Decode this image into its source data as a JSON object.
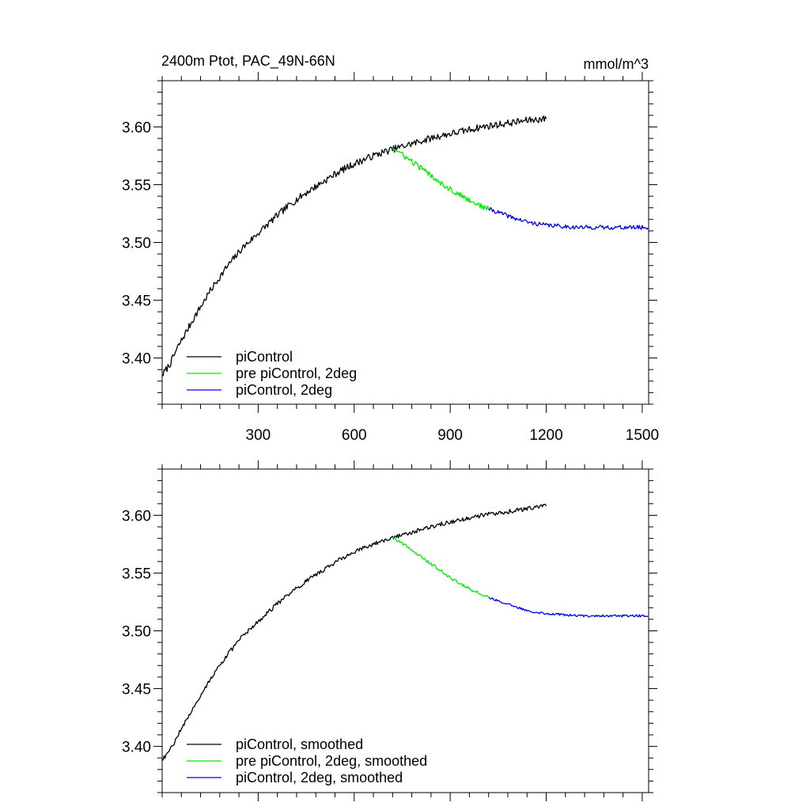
{
  "chart_data": [
    {
      "type": "line",
      "title": "2400m Ptot, PAC_49N-66N",
      "units": "mmol/m^3",
      "xlim": [
        0,
        1520
      ],
      "ylim": [
        3.36,
        3.64
      ],
      "xticks": [
        "300",
        "600",
        "900",
        "1200",
        "1500"
      ],
      "yticks": [
        "3.40",
        "3.45",
        "3.50",
        "3.55",
        "3.60"
      ],
      "legend_position": "bottom-left",
      "series": [
        {
          "name": "piControl",
          "color": "#000000",
          "noise": 0.003,
          "points": [
            [
              0,
              3.385
            ],
            [
              25,
              3.395
            ],
            [
              50,
              3.41
            ],
            [
              100,
              3.435
            ],
            [
              150,
              3.458
            ],
            [
              200,
              3.478
            ],
            [
              250,
              3.495
            ],
            [
              300,
              3.508
            ],
            [
              350,
              3.521
            ],
            [
              400,
              3.533
            ],
            [
              450,
              3.543
            ],
            [
              500,
              3.552
            ],
            [
              550,
              3.561
            ],
            [
              600,
              3.568
            ],
            [
              650,
              3.574
            ],
            [
              700,
              3.579
            ],
            [
              750,
              3.583
            ],
            [
              800,
              3.587
            ],
            [
              850,
              3.591
            ],
            [
              900,
              3.594
            ],
            [
              950,
              3.597
            ],
            [
              1000,
              3.6
            ],
            [
              1050,
              3.602
            ],
            [
              1100,
              3.604
            ],
            [
              1150,
              3.606
            ],
            [
              1200,
              3.607
            ]
          ]
        },
        {
          "name": "pre piControl, 2deg",
          "color": "#00ee00",
          "noise": 0.0025,
          "points": [
            [
              720,
              3.582
            ],
            [
              750,
              3.576
            ],
            [
              800,
              3.566
            ],
            [
              850,
              3.556
            ],
            [
              900,
              3.546
            ],
            [
              950,
              3.538
            ],
            [
              1000,
              3.531
            ],
            [
              1020,
              3.529
            ]
          ]
        },
        {
          "name": "piControl, 2deg",
          "color": "#0000ee",
          "noise": 0.0018,
          "points": [
            [
              1020,
              3.529
            ],
            [
              1050,
              3.526
            ],
            [
              1100,
              3.521
            ],
            [
              1150,
              3.517
            ],
            [
              1200,
              3.515
            ],
            [
              1250,
              3.514
            ],
            [
              1300,
              3.513
            ],
            [
              1350,
              3.513
            ],
            [
              1400,
              3.513
            ],
            [
              1450,
              3.513
            ],
            [
              1520,
              3.513
            ]
          ]
        }
      ]
    },
    {
      "type": "line",
      "xlim": [
        0,
        1520
      ],
      "ylim": [
        3.36,
        3.64
      ],
      "yticks": [
        "3.40",
        "3.45",
        "3.50",
        "3.55",
        "3.60"
      ],
      "legend_position": "bottom-left",
      "series": [
        {
          "name": "piControl, smoothed",
          "color": "#000000",
          "noise": 0.0018,
          "points": [
            [
              0,
              3.388
            ],
            [
              25,
              3.397
            ],
            [
              50,
              3.41
            ],
            [
              100,
              3.435
            ],
            [
              150,
              3.458
            ],
            [
              200,
              3.478
            ],
            [
              250,
              3.495
            ],
            [
              300,
              3.508
            ],
            [
              350,
              3.521
            ],
            [
              400,
              3.533
            ],
            [
              450,
              3.543
            ],
            [
              500,
              3.552
            ],
            [
              550,
              3.561
            ],
            [
              600,
              3.568
            ],
            [
              650,
              3.574
            ],
            [
              700,
              3.579
            ],
            [
              750,
              3.583
            ],
            [
              800,
              3.587
            ],
            [
              850,
              3.591
            ],
            [
              900,
              3.594
            ],
            [
              950,
              3.597
            ],
            [
              1000,
              3.6
            ],
            [
              1050,
              3.602
            ],
            [
              1100,
              3.604
            ],
            [
              1150,
              3.606
            ],
            [
              1200,
              3.608
            ]
          ]
        },
        {
          "name": "pre piControl, 2deg, smoothed",
          "color": "#00ee00",
          "noise": 0.0014,
          "points": [
            [
              720,
              3.581
            ],
            [
              750,
              3.576
            ],
            [
              800,
              3.566
            ],
            [
              850,
              3.556
            ],
            [
              900,
              3.546
            ],
            [
              950,
              3.538
            ],
            [
              1000,
              3.531
            ],
            [
              1020,
              3.529
            ]
          ]
        },
        {
          "name": "piControl, 2deg, smoothed",
          "color": "#0000ee",
          "noise": 0.001,
          "points": [
            [
              1020,
              3.529
            ],
            [
              1050,
              3.526
            ],
            [
              1100,
              3.521
            ],
            [
              1150,
              3.517
            ],
            [
              1200,
              3.515
            ],
            [
              1250,
              3.514
            ],
            [
              1300,
              3.513
            ],
            [
              1350,
              3.513
            ],
            [
              1400,
              3.513
            ],
            [
              1450,
              3.513
            ],
            [
              1520,
              3.513
            ]
          ]
        }
      ]
    }
  ]
}
